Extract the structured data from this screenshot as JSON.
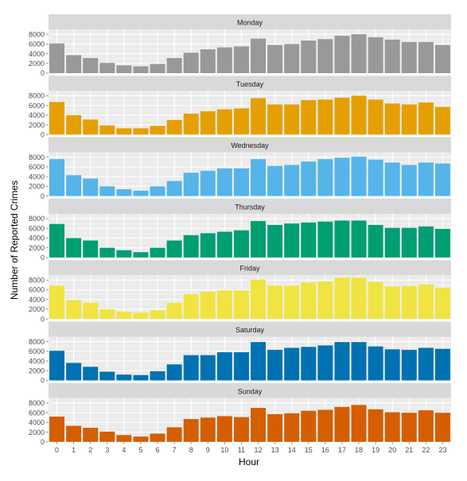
{
  "chart_data": {
    "type": "bar",
    "xlabel": "Hour",
    "ylabel": "Number of Reported Crimes",
    "categories": [
      "0",
      "1",
      "2",
      "3",
      "4",
      "5",
      "6",
      "7",
      "8",
      "9",
      "10",
      "11",
      "12",
      "13",
      "14",
      "15",
      "16",
      "17",
      "18",
      "19",
      "20",
      "21",
      "22",
      "23"
    ],
    "yticks": [
      "0",
      "2000",
      "4000",
      "6000",
      "8000"
    ],
    "ylim": [
      0,
      9000
    ],
    "grid": true,
    "series": [
      {
        "name": "Monday",
        "color": "#999999",
        "values": [
          6100,
          3700,
          3100,
          2100,
          1600,
          1400,
          1900,
          3100,
          4200,
          4900,
          5300,
          5500,
          7100,
          5800,
          6000,
          6700,
          7000,
          7700,
          8000,
          7400,
          6900,
          6400,
          6400,
          5800
        ]
      },
      {
        "name": "Tuesday",
        "color": "#E69F00",
        "values": [
          6700,
          4000,
          3100,
          1900,
          1300,
          1300,
          1800,
          3000,
          4300,
          4800,
          5200,
          5400,
          7500,
          6200,
          6200,
          7100,
          7200,
          7600,
          8000,
          7200,
          6400,
          6200,
          6600,
          5700
        ]
      },
      {
        "name": "Wednesday",
        "color": "#56B4E9",
        "values": [
          7600,
          4300,
          3600,
          2000,
          1400,
          1100,
          2000,
          3100,
          4800,
          5200,
          5700,
          5700,
          7600,
          6200,
          6400,
          7100,
          7600,
          7900,
          8100,
          7500,
          6900,
          6400,
          6900,
          6700
        ]
      },
      {
        "name": "Thursday",
        "color": "#009E73",
        "values": [
          6900,
          4000,
          3500,
          2000,
          1500,
          1100,
          2000,
          3500,
          4600,
          5000,
          5300,
          5600,
          7500,
          6700,
          7000,
          7200,
          7400,
          7600,
          7600,
          6700,
          6100,
          6100,
          6400,
          5900
        ]
      },
      {
        "name": "Friday",
        "color": "#F0E442",
        "values": [
          6900,
          3900,
          3300,
          2000,
          1500,
          1300,
          1800,
          3300,
          5100,
          5600,
          5900,
          5900,
          8100,
          6900,
          6900,
          7500,
          7700,
          8500,
          8500,
          7600,
          6700,
          6800,
          7100,
          6400
        ]
      },
      {
        "name": "Saturday",
        "color": "#0072B2",
        "values": [
          6100,
          3600,
          2800,
          1800,
          1200,
          1100,
          1900,
          3300,
          5200,
          5200,
          5800,
          5800,
          7900,
          6300,
          6700,
          6900,
          7200,
          7900,
          7900,
          7000,
          6400,
          6300,
          6700,
          6500
        ]
      },
      {
        "name": "Sunday",
        "color": "#D55E00",
        "values": [
          5200,
          3300,
          2900,
          2100,
          1400,
          1100,
          1700,
          3000,
          4700,
          5000,
          5300,
          5100,
          7000,
          5700,
          5900,
          6400,
          6600,
          7200,
          7600,
          6700,
          6100,
          6000,
          6500,
          6000
        ]
      }
    ]
  }
}
